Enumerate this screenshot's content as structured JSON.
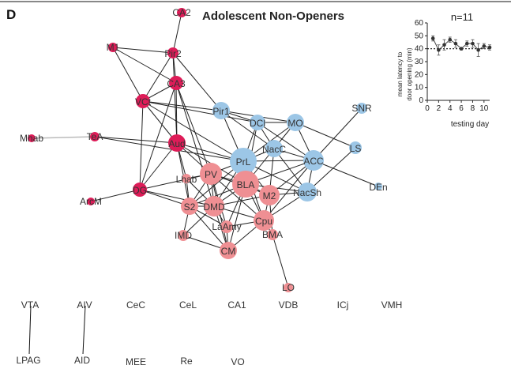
{
  "panel_label": "D",
  "title": "Adolescent Non-Openers",
  "colors": {
    "red": "#de1c58",
    "pink": "#ef8f93",
    "blue": "#9cc6e6",
    "edge": "#222222",
    "line": "#111111"
  },
  "network": {
    "nodes": [
      {
        "id": "CA2",
        "label": "CA2",
        "group": "red"
      },
      {
        "id": "M1",
        "label": "M1",
        "group": "red"
      },
      {
        "id": "Pir2",
        "label": "Pir2",
        "group": "red"
      },
      {
        "id": "CA3",
        "label": "CA3",
        "group": "red"
      },
      {
        "id": "VCt",
        "label": "VCt",
        "group": "red"
      },
      {
        "id": "Mhab",
        "label": "Mhab",
        "group": "red"
      },
      {
        "id": "TeA",
        "label": "TeA",
        "group": "red"
      },
      {
        "id": "Aud",
        "label": "Aud",
        "group": "red"
      },
      {
        "id": "DG",
        "label": "DG",
        "group": "red"
      },
      {
        "id": "ArcM",
        "label": "ArcM",
        "group": "red"
      },
      {
        "id": "Pir1",
        "label": "Pir1",
        "group": "blue"
      },
      {
        "id": "DCl",
        "label": "DCl",
        "group": "blue"
      },
      {
        "id": "MO",
        "label": "MO",
        "group": "blue"
      },
      {
        "id": "SNR",
        "label": "SNR",
        "group": "blue"
      },
      {
        "id": "NacC",
        "label": "NacC",
        "group": "blue"
      },
      {
        "id": "LS",
        "label": "LS",
        "group": "blue"
      },
      {
        "id": "PrL",
        "label": "PrL",
        "group": "blue"
      },
      {
        "id": "ACC",
        "label": "ACC",
        "group": "blue"
      },
      {
        "id": "DEn",
        "label": "DEn",
        "group": "blue"
      },
      {
        "id": "NacSh",
        "label": "NacSh",
        "group": "blue"
      },
      {
        "id": "Lhab",
        "label": "Lhab",
        "group": "pink"
      },
      {
        "id": "PV",
        "label": "PV",
        "group": "pink"
      },
      {
        "id": "BLA",
        "label": "BLA",
        "group": "pink"
      },
      {
        "id": "M2",
        "label": "M2",
        "group": "pink"
      },
      {
        "id": "S2",
        "label": "S2",
        "group": "pink"
      },
      {
        "id": "DMD",
        "label": "DMD",
        "group": "pink"
      },
      {
        "id": "LaAmy",
        "label": "LaAmy",
        "group": "pink"
      },
      {
        "id": "Cpu",
        "label": "Cpu",
        "group": "pink"
      },
      {
        "id": "IMD",
        "label": "IMD",
        "group": "pink"
      },
      {
        "id": "BMA",
        "label": "BMA",
        "group": "pink"
      },
      {
        "id": "CM",
        "label": "CM",
        "group": "pink"
      },
      {
        "id": "LO",
        "label": "LO",
        "group": "pink"
      }
    ],
    "edges": [
      [
        "CA2",
        "Pir2"
      ],
      [
        "M1",
        "Pir2"
      ],
      [
        "M1",
        "VCt"
      ],
      [
        "M1",
        "CA3"
      ],
      [
        "Pir2",
        "CA3"
      ],
      [
        "Pir2",
        "VCt"
      ],
      [
        "Pir2",
        "Aud"
      ],
      [
        "Pir2",
        "Pir1"
      ],
      [
        "CA3",
        "VCt"
      ],
      [
        "CA3",
        "Aud"
      ],
      [
        "CA3",
        "DG"
      ],
      [
        "CA3",
        "PV"
      ],
      [
        "CA3",
        "DMD"
      ],
      [
        "VCt",
        "Pir1"
      ],
      [
        "VCt",
        "Aud"
      ],
      [
        "VCt",
        "DG"
      ],
      [
        "VCt",
        "PrL"
      ],
      [
        "VCt",
        "DCl"
      ],
      [
        "Mhab",
        "TeA"
      ],
      [
        "TeA",
        "Aud"
      ],
      [
        "TeA",
        "PrL"
      ],
      [
        "Aud",
        "PrL"
      ],
      [
        "Aud",
        "DG"
      ],
      [
        "Aud",
        "PV"
      ],
      [
        "Aud",
        "BLA"
      ],
      [
        "Aud",
        "S2"
      ],
      [
        "Aud",
        "Lhab"
      ],
      [
        "DG",
        "ArcM"
      ],
      [
        "DG",
        "PV"
      ],
      [
        "DG",
        "S2"
      ],
      [
        "DG",
        "DMD"
      ],
      [
        "Pir1",
        "DCl"
      ],
      [
        "Pir1",
        "MO"
      ],
      [
        "Pir1",
        "PrL"
      ],
      [
        "Pir1",
        "NacC"
      ],
      [
        "DCl",
        "MO"
      ],
      [
        "DCl",
        "PrL"
      ],
      [
        "DCl",
        "NacC"
      ],
      [
        "DCl",
        "ACC"
      ],
      [
        "DCl",
        "BLA"
      ],
      [
        "MO",
        "NacC"
      ],
      [
        "MO",
        "ACC"
      ],
      [
        "MO",
        "LS"
      ],
      [
        "MO",
        "PrL"
      ],
      [
        "SNR",
        "ACC"
      ],
      [
        "NacC",
        "ACC"
      ],
      [
        "NacC",
        "PrL"
      ],
      [
        "NacC",
        "BLA"
      ],
      [
        "NacC",
        "NacSh"
      ],
      [
        "NacC",
        "M2"
      ],
      [
        "LS",
        "NacSh"
      ],
      [
        "PrL",
        "ACC"
      ],
      [
        "PrL",
        "BLA"
      ],
      [
        "PrL",
        "PV"
      ],
      [
        "PrL",
        "DMD"
      ],
      [
        "PrL",
        "M2"
      ],
      [
        "PrL",
        "NacSh"
      ],
      [
        "PrL",
        "S2"
      ],
      [
        "PrL",
        "Cpu"
      ],
      [
        "ACC",
        "NacSh"
      ],
      [
        "ACC",
        "DEn"
      ],
      [
        "ACC",
        "M2"
      ],
      [
        "ACC",
        "BLA"
      ],
      [
        "ACC",
        "Cpu"
      ],
      [
        "NacSh",
        "M2"
      ],
      [
        "NacSh",
        "BLA"
      ],
      [
        "NacSh",
        "Cpu"
      ],
      [
        "Lhab",
        "PV"
      ],
      [
        "Lhab",
        "S2"
      ],
      [
        "Lhab",
        "DMD"
      ],
      [
        "PV",
        "BLA"
      ],
      [
        "PV",
        "S2"
      ],
      [
        "PV",
        "DMD"
      ],
      [
        "PV",
        "LaAmy"
      ],
      [
        "PV",
        "M2"
      ],
      [
        "PV",
        "Cpu"
      ],
      [
        "PV",
        "CM"
      ],
      [
        "BLA",
        "M2"
      ],
      [
        "BLA",
        "DMD"
      ],
      [
        "BLA",
        "S2"
      ],
      [
        "BLA",
        "Cpu"
      ],
      [
        "BLA",
        "LaAmy"
      ],
      [
        "BLA",
        "CM"
      ],
      [
        "M2",
        "Cpu"
      ],
      [
        "M2",
        "BMA"
      ],
      [
        "M2",
        "DMD"
      ],
      [
        "S2",
        "DMD"
      ],
      [
        "S2",
        "IMD"
      ],
      [
        "S2",
        "CM"
      ],
      [
        "S2",
        "LaAmy"
      ],
      [
        "DMD",
        "LaAmy"
      ],
      [
        "DMD",
        "CM"
      ],
      [
        "DMD",
        "Cpu"
      ],
      [
        "DMD",
        "IMD"
      ],
      [
        "LaAmy",
        "CM"
      ],
      [
        "LaAmy",
        "Cpu"
      ],
      [
        "Cpu",
        "CM"
      ],
      [
        "Cpu",
        "BMA"
      ],
      [
        "BMA",
        "LO"
      ],
      [
        "IMD",
        "CM"
      ]
    ]
  },
  "isolated": [
    {
      "id": "VTA",
      "label": "VTA"
    },
    {
      "id": "AIV",
      "label": "AIV"
    },
    {
      "id": "CeC",
      "label": "CeC"
    },
    {
      "id": "CeL",
      "label": "CeL"
    },
    {
      "id": "CA1",
      "label": "CA1"
    },
    {
      "id": "VDB",
      "label": "VDB"
    },
    {
      "id": "ICj",
      "label": "ICj"
    },
    {
      "id": "VMH",
      "label": "VMH"
    },
    {
      "id": "LPAG",
      "label": "LPAG"
    },
    {
      "id": "AID",
      "label": "AID"
    },
    {
      "id": "MEE",
      "label": "MEE"
    },
    {
      "id": "Re",
      "label": "Re"
    },
    {
      "id": "VO",
      "label": "VO"
    }
  ],
  "isolated_links": [
    [
      "VTA",
      "LPAG"
    ],
    [
      "AIV",
      "AID"
    ]
  ],
  "inset": {
    "n_label": "n=11",
    "ylabel_line1": "mean latency to",
    "ylabel_line2": "door opening (min)",
    "xlabel": "testing day",
    "yticks": [
      "0",
      "10",
      "20",
      "30",
      "40",
      "50",
      "60"
    ],
    "xticks": [
      "0",
      "2",
      "4",
      "6",
      "8",
      "10"
    ]
  },
  "chart_data": {
    "type": "line",
    "title": "",
    "xlabel": "testing day",
    "ylabel": "mean latency to door opening (min)",
    "xlim": [
      0,
      11
    ],
    "ylim": [
      0,
      60
    ],
    "reference_line_y": 40,
    "series": [
      {
        "x": [
          1,
          2,
          3,
          4,
          5,
          6,
          7,
          8,
          9,
          10,
          11
        ],
        "y": [
          48,
          39,
          43,
          47,
          44,
          40,
          44,
          44,
          39,
          42,
          41
        ],
        "error": [
          2,
          4,
          4,
          2,
          3,
          1,
          2,
          3,
          5,
          2,
          2
        ]
      }
    ]
  }
}
